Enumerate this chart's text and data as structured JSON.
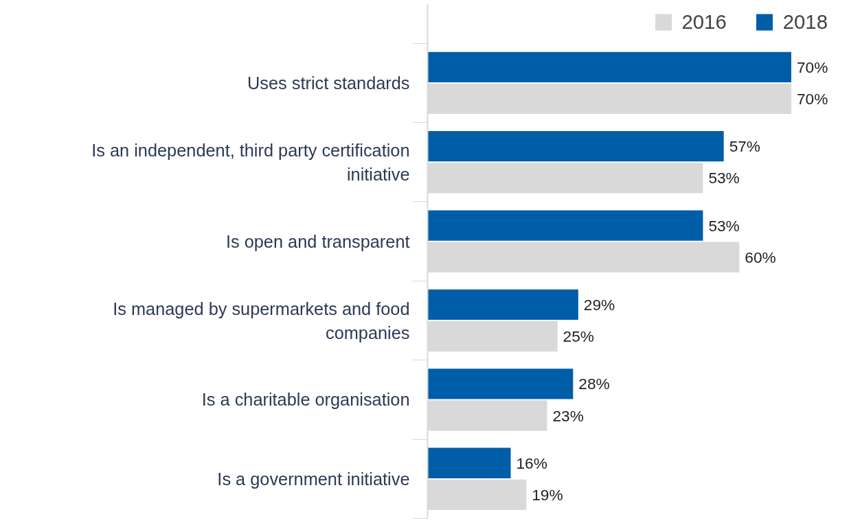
{
  "chart_data": {
    "type": "bar",
    "orientation": "horizontal",
    "categories": [
      "Uses strict standards",
      "Is an independent, third party certification initiative",
      "Is open and transparent",
      "Is managed by supermarkets and food companies",
      "Is a charitable organisation",
      "Is a government initiative"
    ],
    "series": [
      {
        "name": "2016",
        "color": "#d9d9d9",
        "values": [
          70,
          53,
          60,
          25,
          23,
          19
        ],
        "value_labels": [
          "70%",
          "53%",
          "60%",
          "25%",
          "23%",
          "19%"
        ]
      },
      {
        "name": "2018",
        "color": "#005da8",
        "values": [
          70,
          57,
          53,
          29,
          28,
          16
        ],
        "value_labels": [
          "70%",
          "57%",
          "53%",
          "29%",
          "28%",
          "16%"
        ]
      }
    ],
    "tick_labels": "y",
    "grid": false,
    "legend": "top right"
  }
}
